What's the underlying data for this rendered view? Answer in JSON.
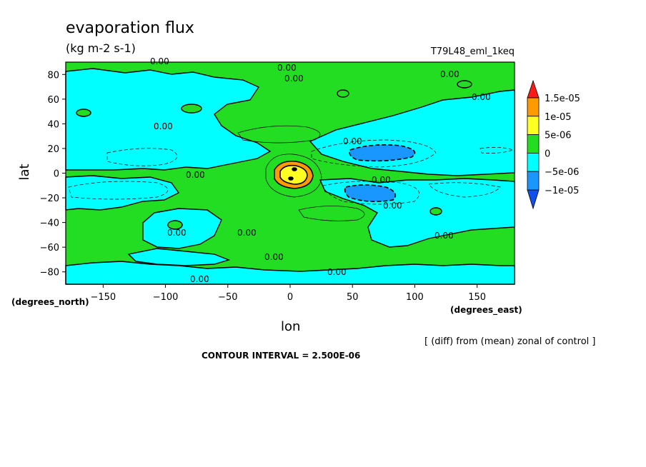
{
  "chart_data": {
    "type": "contour",
    "title": "evaporation flux",
    "units": "(kg m-2 s-1)",
    "run_label": "T79L48_eml_1keq",
    "xlabel": "lon",
    "ylabel": "lat",
    "x_units": "(degrees_east)",
    "y_units": "(degrees_north)",
    "xlim": [
      -180,
      180
    ],
    "ylim": [
      -90,
      90
    ],
    "x_ticks": [
      "-150",
      "-100",
      "-50",
      "0",
      "50",
      "100",
      "150"
    ],
    "y_ticks": [
      "80",
      "60",
      "40",
      "20",
      "0",
      "-20",
      "-40",
      "-60",
      "-80"
    ],
    "contour_label": "0.00",
    "contour_interval": "CONTOUR INTERVAL = 2.500E-06",
    "note": "[ (diff) from (mean) zonal of control ]",
    "colorbar": {
      "labels": [
        "1.5e-05",
        "1e-05",
        "5e-06",
        "0",
        "-5e-06",
        "-1e-05"
      ],
      "colors": [
        "#ff1a1a",
        "#ff9a00",
        "#ffff22",
        "#22dd22",
        "#00ffff",
        "#1a96ff",
        "#1050ee"
      ]
    }
  }
}
